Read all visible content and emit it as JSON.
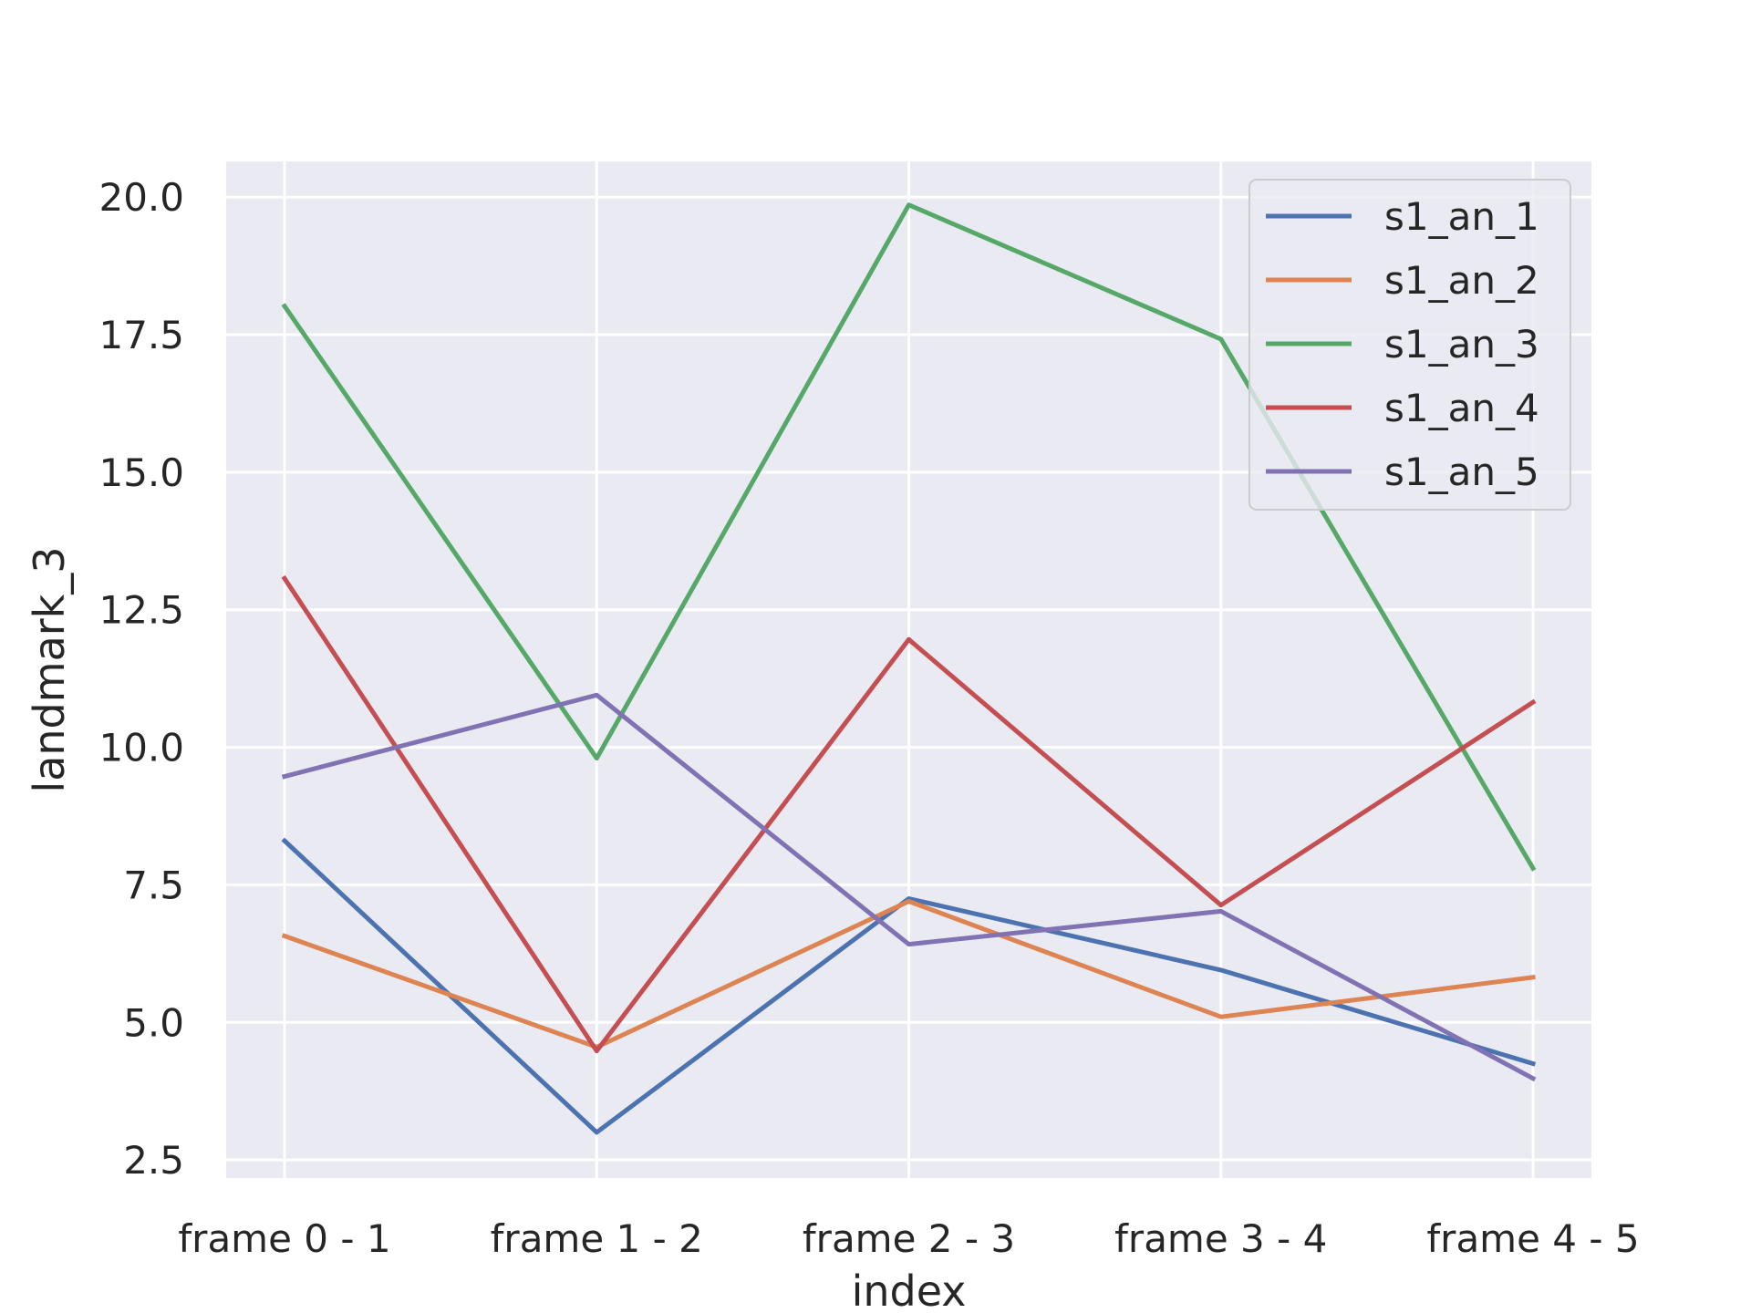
{
  "chart_data": {
    "type": "line",
    "title": "",
    "xlabel": "index",
    "ylabel": "landmark_3",
    "categories": [
      "frame 0 - 1",
      "frame 1 - 2",
      "frame 2 - 3",
      "frame 3 - 4",
      "frame 4 - 5"
    ],
    "ylim": [
      2.17,
      20.65
    ],
    "yticks": [
      2.5,
      5.0,
      7.5,
      10.0,
      12.5,
      15.0,
      17.5,
      20.0
    ],
    "ytick_labels": [
      "2.5",
      "5.0",
      "7.5",
      "10.0",
      "12.5",
      "15.0",
      "17.5",
      "20.0"
    ],
    "grid": true,
    "legend_position": "top-right",
    "background": "#eaeaf2",
    "series": [
      {
        "name": "s1_an_1",
        "color": "#4c72b0",
        "values": [
          8.3,
          3.0,
          7.25,
          5.95,
          4.25
        ]
      },
      {
        "name": "s1_an_2",
        "color": "#dd8452",
        "values": [
          6.57,
          4.55,
          7.2,
          5.1,
          5.82
        ]
      },
      {
        "name": "s1_an_3",
        "color": "#55a868",
        "values": [
          18.02,
          9.8,
          19.86,
          17.42,
          7.8
        ]
      },
      {
        "name": "s1_an_4",
        "color": "#c44e52",
        "values": [
          13.07,
          4.48,
          11.96,
          7.13,
          10.82
        ]
      },
      {
        "name": "s1_an_5",
        "color": "#8172b3",
        "values": [
          9.47,
          10.95,
          6.42,
          7.02,
          3.98
        ]
      }
    ]
  }
}
